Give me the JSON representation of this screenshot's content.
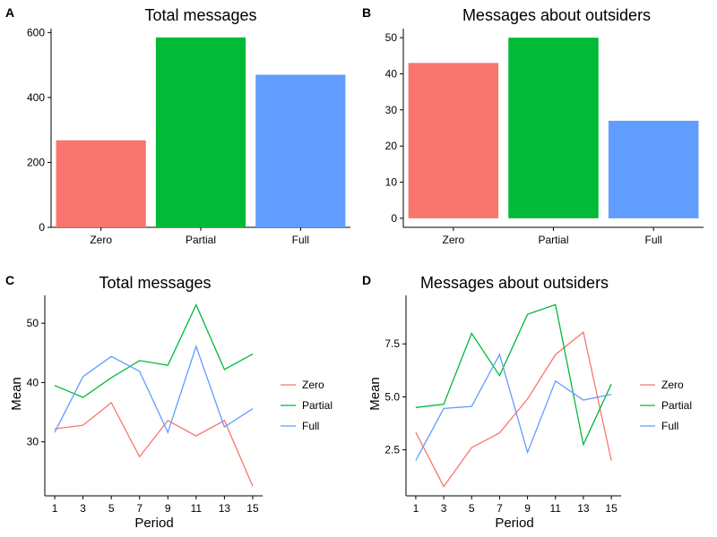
{
  "colors": {
    "Zero": "#F8766D",
    "Partial": "#00BA38",
    "Full": "#619CFF"
  },
  "chart_data": [
    {
      "panel": "A",
      "type": "bar",
      "title": "Total messages",
      "categories": [
        "Zero",
        "Partial",
        "Full"
      ],
      "values": [
        268,
        585,
        470
      ],
      "xlabel": "",
      "ylabel": "",
      "ylim": [
        0,
        612
      ],
      "yticks": [
        0,
        200,
        400,
        600
      ],
      "grid": false
    },
    {
      "panel": "B",
      "type": "bar",
      "title": "Messages about outsiders",
      "categories": [
        "Zero",
        "Partial",
        "Full"
      ],
      "values": [
        43,
        50,
        27
      ],
      "xlabel": "",
      "ylabel": "",
      "ylim": [
        -2.5,
        52.5
      ],
      "yticks": [
        0,
        10,
        20,
        30,
        40,
        50
      ],
      "grid": false
    },
    {
      "panel": "C",
      "type": "line",
      "title": "Total messages",
      "x": [
        1,
        3,
        5,
        7,
        9,
        11,
        13,
        15
      ],
      "xticks": [
        1,
        3,
        5,
        7,
        9,
        11,
        13,
        15
      ],
      "series": [
        {
          "name": "Zero",
          "values": [
            32.2,
            32.8,
            36.6,
            27.5,
            33.6,
            31.0,
            33.6,
            22.5
          ]
        },
        {
          "name": "Partial",
          "values": [
            39.5,
            37.5,
            40.8,
            43.7,
            42.9,
            53.1,
            42.2,
            44.8
          ]
        },
        {
          "name": "Full",
          "values": [
            31.6,
            41.0,
            44.4,
            41.9,
            31.6,
            46.1,
            32.5,
            35.6
          ]
        }
      ],
      "xlabel": "Period",
      "ylabel": "Mean",
      "xlim": [
        0.3,
        15.7
      ],
      "ylim": [
        20.9,
        54.7
      ],
      "yticks": [
        30,
        40,
        50
      ],
      "legend": "right",
      "grid": false
    },
    {
      "panel": "D",
      "type": "line",
      "title": "Messages about outsiders",
      "x": [
        1,
        3,
        5,
        7,
        9,
        11,
        13,
        15
      ],
      "xticks": [
        1,
        3,
        5,
        7,
        9,
        11,
        13,
        15
      ],
      "yticklabels": [
        "2.5",
        "5.0",
        "7.5"
      ],
      "series": [
        {
          "name": "Zero",
          "values": [
            3.33,
            0.77,
            2.6,
            3.3,
            4.9,
            7.0,
            8.05,
            2.0
          ]
        },
        {
          "name": "Partial",
          "values": [
            4.5,
            4.65,
            8.0,
            6.0,
            8.9,
            9.35,
            2.75,
            5.6
          ]
        },
        {
          "name": "Full",
          "values": [
            2.0,
            4.45,
            4.55,
            7.0,
            2.38,
            5.75,
            4.85,
            5.12
          ]
        }
      ],
      "xlabel": "Period",
      "ylabel": "Mean",
      "xlim": [
        0.3,
        15.7
      ],
      "ylim": [
        0.33,
        9.79
      ],
      "yticks": [
        2.5,
        5.0,
        7.5
      ],
      "legend": "right",
      "grid": false
    }
  ]
}
